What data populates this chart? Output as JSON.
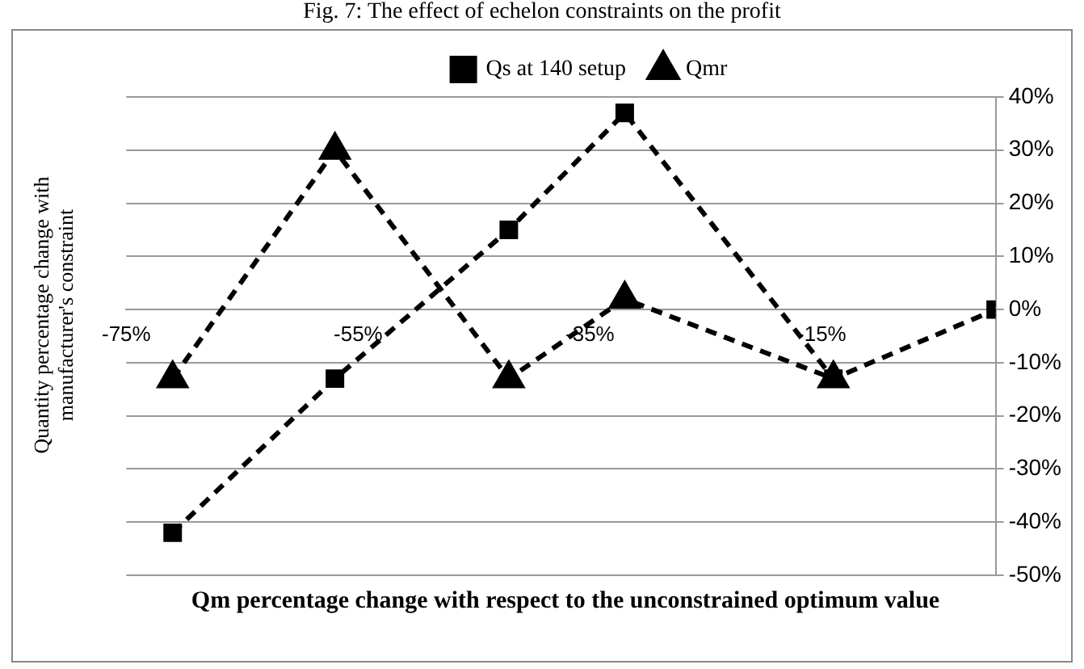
{
  "chart_data": {
    "type": "line",
    "title": "Fig. 7: The effect of echelon constraints on the profit",
    "xlabel": "Qm percentage change with respect to the unconstrained optimum value",
    "ylabel": "Quantity percentage change with manufacturer's constraint",
    "xlim": [
      -75,
      0
    ],
    "xticks": [
      {
        "value": -75,
        "label": "-75%"
      },
      {
        "value": -55,
        "label": "-55%"
      },
      {
        "value": -35,
        "label": "-35%"
      },
      {
        "value": -15,
        "label": "-15%"
      }
    ],
    "ylim": [
      -50,
      40
    ],
    "yticks": [
      {
        "value": -50,
        "label": "-50%"
      },
      {
        "value": -40,
        "label": "-40%"
      },
      {
        "value": -30,
        "label": "-30%"
      },
      {
        "value": -20,
        "label": "-20%"
      },
      {
        "value": -10,
        "label": "-10%"
      },
      {
        "value": 0,
        "label": "0%"
      },
      {
        "value": 10,
        "label": "10%"
      },
      {
        "value": 20,
        "label": "20%"
      },
      {
        "value": 30,
        "label": "30%"
      },
      {
        "value": 40,
        "label": "40%"
      }
    ],
    "grid": "y",
    "legend": "top",
    "line_style": "dashed",
    "series": [
      {
        "name": "Qs at 140 setup",
        "color": "#000000",
        "marker": "square",
        "x": [
          -71,
          -57,
          -42,
          -32,
          -14,
          0
        ],
        "values": [
          -42,
          -13,
          15,
          37,
          -13,
          0
        ]
      },
      {
        "name": "Qmr",
        "color": "#000000",
        "marker": "triangle",
        "x": [
          -71,
          -57,
          -42,
          -32,
          -14
        ],
        "values": [
          -13,
          30,
          -13,
          2,
          -13
        ]
      }
    ]
  }
}
